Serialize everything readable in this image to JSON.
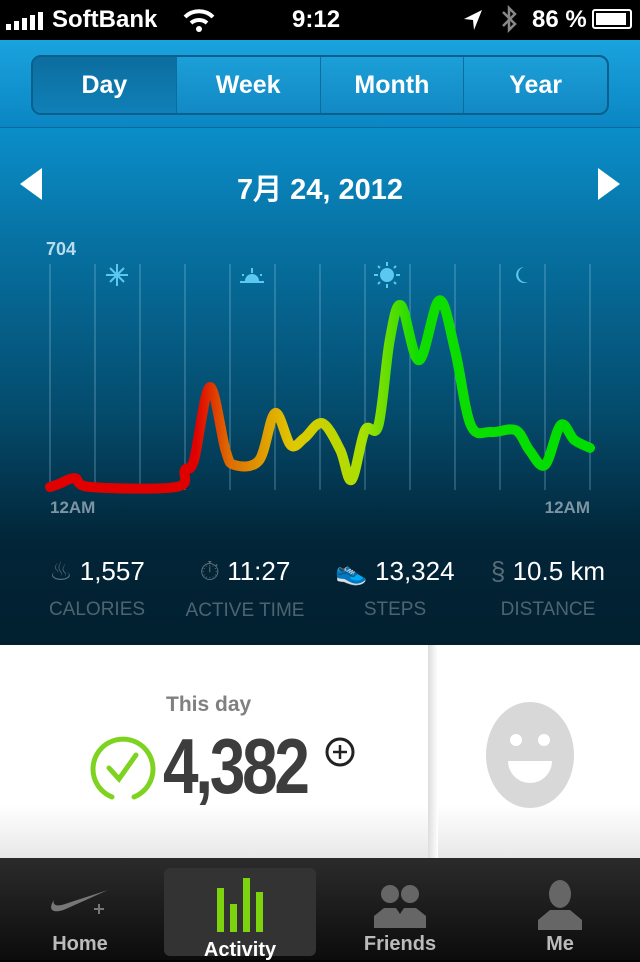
{
  "status_bar": {
    "carrier": "SoftBank",
    "time": "9:12",
    "battery": "86 %"
  },
  "segments": [
    {
      "label": "Day",
      "active": true
    },
    {
      "label": "Week"
    },
    {
      "label": "Month"
    },
    {
      "label": "Year"
    }
  ],
  "date": "7月 24, 2012",
  "chart_data": {
    "type": "line",
    "ymax_label": "704",
    "x_start_label": "12AM",
    "x_end_label": "12AM",
    "x_unit": "hour",
    "x": [
      0,
      0.4,
      1.1,
      1.8,
      5.6,
      6.0,
      6.4,
      7.1,
      7.8,
      8.2,
      9.3,
      10.0,
      10.7,
      11.3,
      12.1,
      12.9,
      13.4,
      14.0,
      14.6,
      15.1,
      15.6,
      16.4,
      17.3,
      18.0,
      18.7,
      19.6,
      20.7,
      21.3,
      22.0,
      22.7,
      23.3,
      24
    ],
    "values": [
      0,
      10,
      29,
      0,
      0,
      56,
      88,
      327,
      121,
      72,
      88,
      242,
      137,
      160,
      209,
      121,
      23,
      186,
      203,
      481,
      595,
      415,
      611,
      448,
      203,
      180,
      186,
      121,
      72,
      203,
      154,
      128
    ],
    "ylim": [
      0,
      704
    ],
    "time_icons": [
      "night-star-icon",
      "sunrise-icon",
      "sun-icon",
      "moon-icon"
    ],
    "colors": {
      "low": "#e00000",
      "mid": "#e0d000",
      "high": "#00dd00"
    }
  },
  "stats": [
    {
      "icon": "flame-icon",
      "value": "1,557",
      "label": "CALORIES"
    },
    {
      "icon": "stopwatch-icon",
      "value": "11:27",
      "label": "ACTIVE TIME"
    },
    {
      "icon": "shoe-icon",
      "value": "13,324",
      "label": "STEPS"
    },
    {
      "icon": "path-icon",
      "value": "10.5 km",
      "label": "DISTANCE"
    }
  ],
  "summary": {
    "label": "This day",
    "fuel": "4,382",
    "goal_met": true,
    "accent": "#7ed321"
  },
  "tabs": [
    {
      "label": "Home"
    },
    {
      "label": "Activity",
      "active": true
    },
    {
      "label": "Friends"
    },
    {
      "label": "Me"
    }
  ]
}
